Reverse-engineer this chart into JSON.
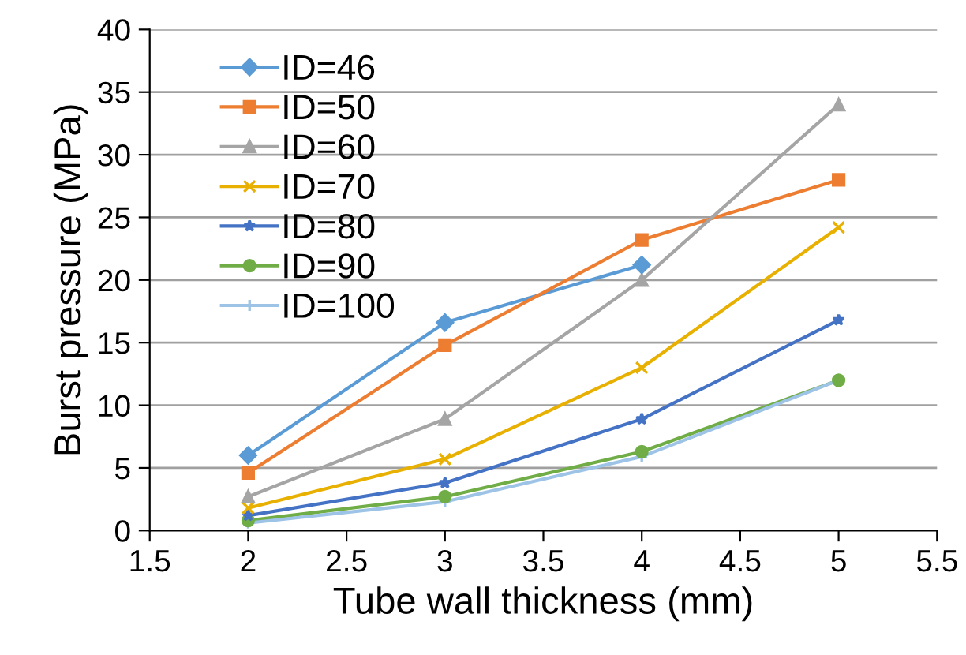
{
  "chart_data": {
    "type": "line",
    "xlabel": "Tube wall thickness (mm)",
    "ylabel": "Burst pressure (MPa)",
    "x": [
      2,
      3,
      4,
      5
    ],
    "series": [
      {
        "name": "ID=46",
        "color": "#5b9bd5",
        "marker": "diamond",
        "values": [
          6.0,
          16.6,
          21.2,
          null
        ]
      },
      {
        "name": "ID=50",
        "color": "#ed7d31",
        "marker": "square",
        "values": [
          4.6,
          14.8,
          23.2,
          28.0
        ]
      },
      {
        "name": "ID=60",
        "color": "#a5a5a5",
        "marker": "triangle",
        "values": [
          2.7,
          8.9,
          20.0,
          34.0
        ]
      },
      {
        "name": "ID=70",
        "color": "#e8b000",
        "marker": "cross",
        "values": [
          1.8,
          5.7,
          13.0,
          24.2
        ]
      },
      {
        "name": "ID=80",
        "color": "#4472c4",
        "marker": "star",
        "values": [
          1.2,
          3.8,
          8.9,
          16.8
        ]
      },
      {
        "name": "ID=90",
        "color": "#70ad47",
        "marker": "circle",
        "values": [
          0.8,
          2.7,
          6.3,
          12.0
        ]
      },
      {
        "name": "ID=100",
        "color": "#9dc3e6",
        "marker": "plus",
        "values": [
          0.6,
          2.3,
          5.9,
          12.0
        ]
      }
    ],
    "xlim": [
      1.5,
      5.5
    ],
    "xticks": [
      1.5,
      2,
      2.5,
      3,
      3.5,
      4,
      4.5,
      5,
      5.5
    ],
    "ylim": [
      0,
      40
    ],
    "yticks": [
      0,
      5,
      10,
      15,
      20,
      25,
      30,
      35,
      40
    ],
    "grid": "y",
    "legend": "top left",
    "line_style": "solid"
  }
}
